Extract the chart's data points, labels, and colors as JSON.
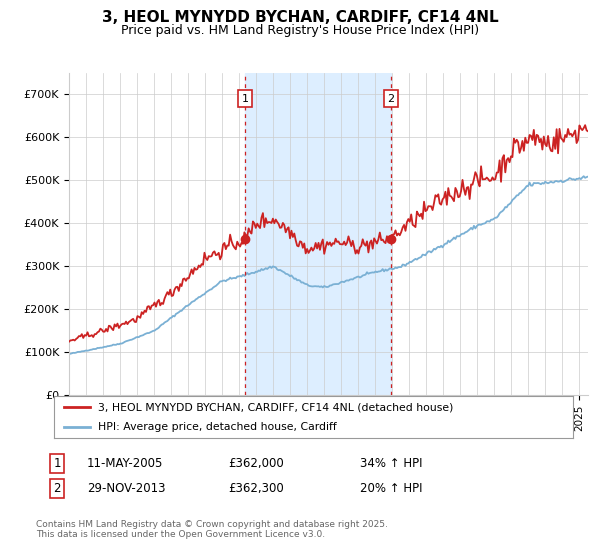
{
  "title": "3, HEOL MYNYDD BYCHAN, CARDIFF, CF14 4NL",
  "subtitle": "Price paid vs. HM Land Registry's House Price Index (HPI)",
  "ylim": [
    0,
    750000
  ],
  "yticks": [
    0,
    100000,
    200000,
    300000,
    400000,
    500000,
    600000,
    700000
  ],
  "ytick_labels": [
    "£0",
    "£100K",
    "£200K",
    "£300K",
    "£400K",
    "£500K",
    "£600K",
    "£700K"
  ],
  "red_line_color": "#cc2222",
  "blue_line_color": "#7ab0d4",
  "shade_color": "#ddeeff",
  "vline_color": "#cc2222",
  "marker1_year": 2005.36,
  "marker2_year": 2013.91,
  "legend_entry1": "3, HEOL MYNYDD BYCHAN, CARDIFF, CF14 4NL (detached house)",
  "legend_entry2": "HPI: Average price, detached house, Cardiff",
  "table_row1": [
    "1",
    "11-MAY-2005",
    "£362,000",
    "34% ↑ HPI"
  ],
  "table_row2": [
    "2",
    "29-NOV-2013",
    "£362,300",
    "20% ↑ HPI"
  ],
  "footnote": "Contains HM Land Registry data © Crown copyright and database right 2025.\nThis data is licensed under the Open Government Licence v3.0.",
  "background_color": "#ffffff",
  "grid_color": "#cccccc"
}
